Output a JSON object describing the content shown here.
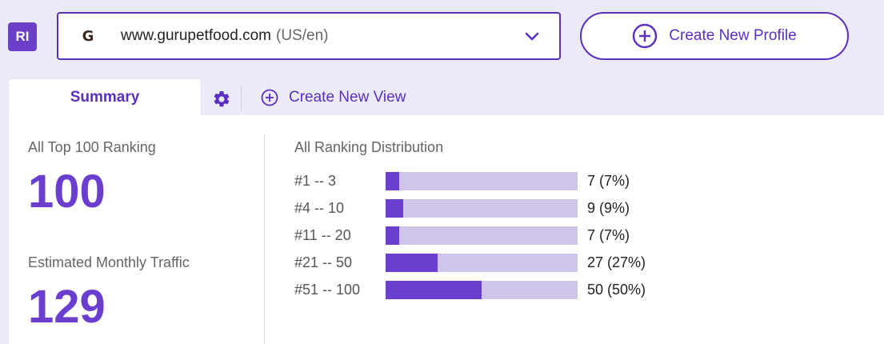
{
  "app": {
    "badge": "RI"
  },
  "domain_selector": {
    "favicon_letter": "G",
    "url": "www.gurupetfood.com",
    "locale": "(US/en)"
  },
  "buttons": {
    "create_profile": "Create New Profile",
    "create_view": "Create New View"
  },
  "tabs": [
    {
      "label": "Summary",
      "active": true
    }
  ],
  "metrics": [
    {
      "label": "All Top 100 Ranking",
      "value": "100"
    },
    {
      "label": "Estimated Monthly Traffic",
      "value": "129"
    }
  ],
  "distribution": {
    "title": "All Ranking Distribution",
    "rows": [
      {
        "range": "#1 -- 3",
        "value": "7 (7%)",
        "fraction": 0.07
      },
      {
        "range": "#4 -- 10",
        "value": "9 (9%)",
        "fraction": 0.09
      },
      {
        "range": "#11 -- 20",
        "value": "7 (7%)",
        "fraction": 0.07
      },
      {
        "range": "#21 -- 50",
        "value": "27 (27%)",
        "fraction": 0.27
      },
      {
        "range": "#51 -- 100",
        "value": "50 (50%)",
        "fraction": 0.5
      }
    ]
  },
  "colors": {
    "accent": "#5b2fc0",
    "bar_fill": "#6a3fd0",
    "bar_track": "#cfc4e9"
  }
}
